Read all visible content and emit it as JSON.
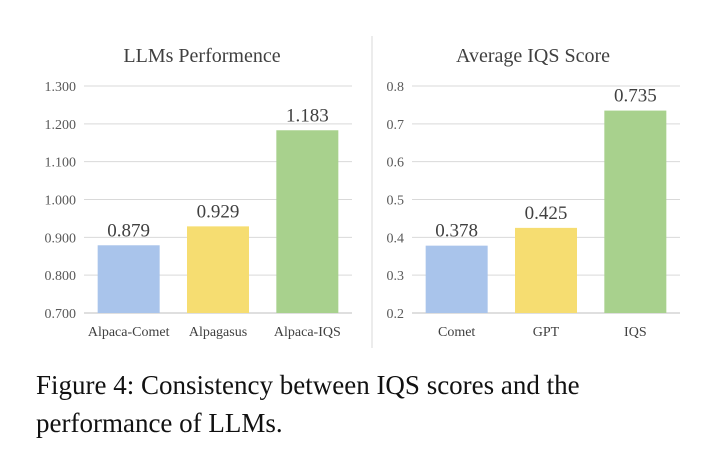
{
  "chart_data": [
    {
      "type": "bar",
      "title": "LLMs Performence",
      "categories": [
        "Alpaca-Comet",
        "Alpagasus",
        "Alpaca-IQS"
      ],
      "values": [
        0.879,
        0.929,
        1.183
      ],
      "data_labels": [
        "0.879",
        "0.929",
        "1.183"
      ],
      "colors": [
        "#a9c4eb",
        "#f6dd71",
        "#a8d18d"
      ],
      "ylim": [
        0.7,
        1.3
      ],
      "yticks": [
        "0.700",
        "0.800",
        "0.900",
        "1.000",
        "1.100",
        "1.200",
        "1.300"
      ],
      "grid": true,
      "xlabel": "",
      "ylabel": ""
    },
    {
      "type": "bar",
      "title": "Average IQS Score",
      "categories": [
        "Comet",
        "GPT",
        "IQS"
      ],
      "values": [
        0.378,
        0.425,
        0.735
      ],
      "data_labels": [
        "0.378",
        "0.425",
        "0.735"
      ],
      "colors": [
        "#a9c4eb",
        "#f6dd71",
        "#a8d18d"
      ],
      "ylim": [
        0.2,
        0.8
      ],
      "yticks": [
        "0.2",
        "0.3",
        "0.4",
        "0.5",
        "0.6",
        "0.7",
        "0.8"
      ],
      "grid": true,
      "xlabel": "",
      "ylabel": ""
    }
  ],
  "caption": "Figure 4: Consistency between IQS scores and the performance of LLMs."
}
